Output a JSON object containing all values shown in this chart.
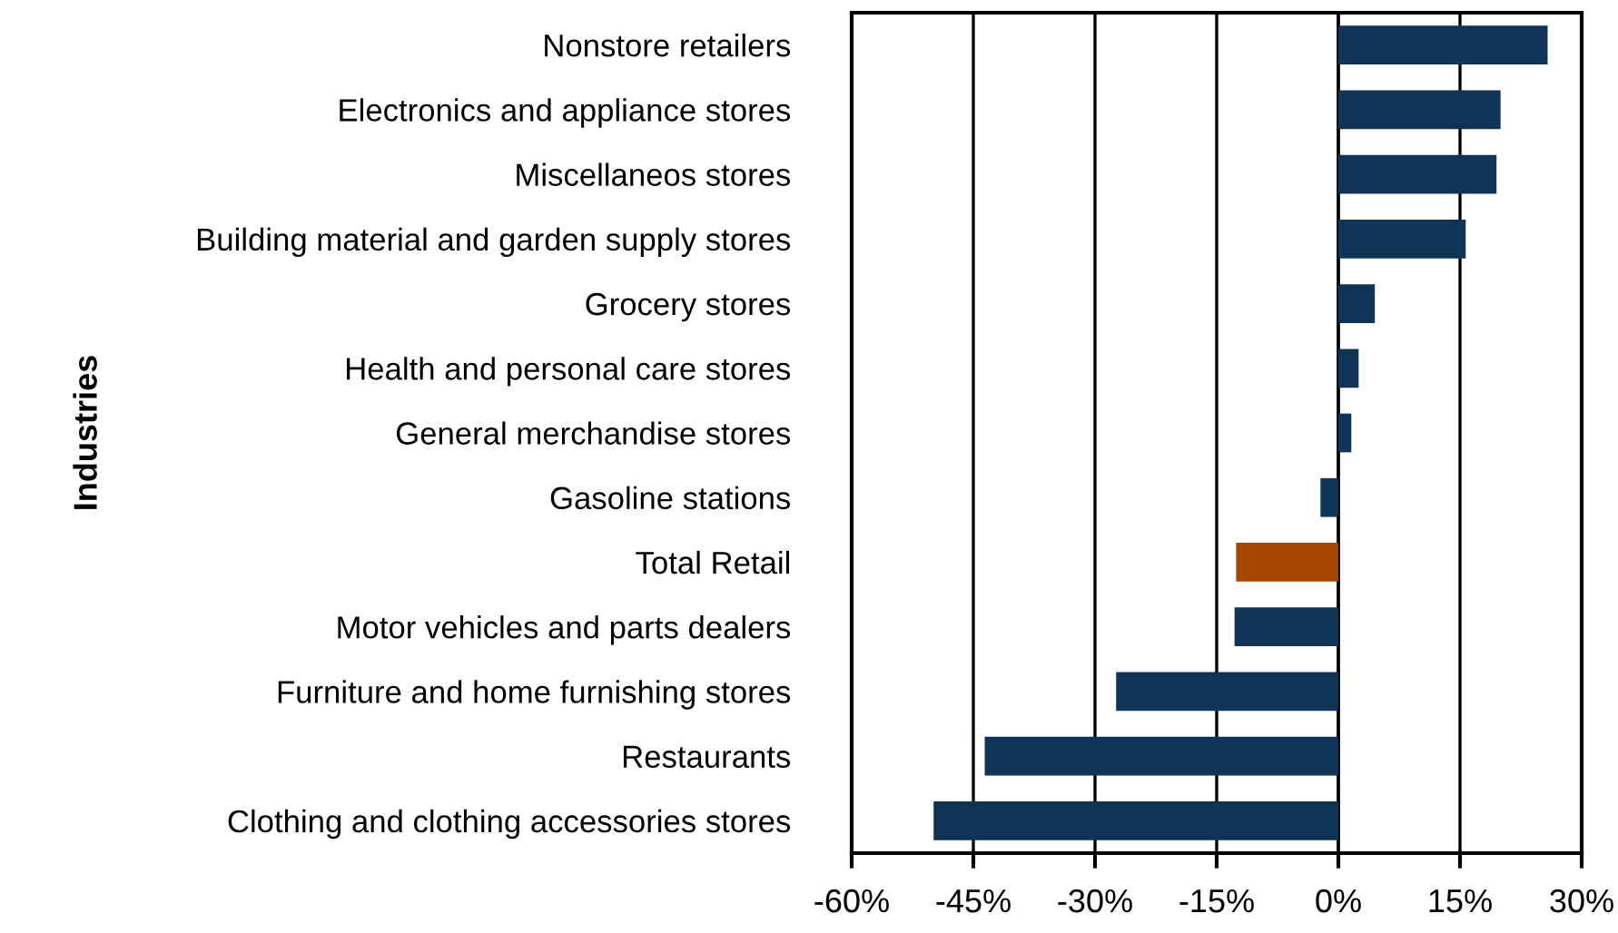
{
  "chart_data": {
    "type": "bar",
    "orientation": "horizontal",
    "ylabel": "Industries",
    "categories": [
      "Nonstore retailers",
      "Electronics and appliance stores",
      "Miscellaneos stores",
      "Building material and garden supply stores",
      "Grocery stores",
      "Health and personal care stores",
      "General merchandise stores",
      "Gasoline stations",
      "Total Retail",
      "Motor vehicles and parts dealers",
      "Furniture and home furnishing stores",
      "Restaurants",
      "Clothing and clothing accessories stores"
    ],
    "values": [
      25.8,
      20,
      19.5,
      15.7,
      4.5,
      2.5,
      1.6,
      -2.2,
      -12.6,
      -12.8,
      -27.4,
      -43.6,
      -49.9
    ],
    "colors": [
      "#103456",
      "#103456",
      "#103456",
      "#103456",
      "#103456",
      "#103456",
      "#103456",
      "#103456",
      "#a34700",
      "#103456",
      "#103456",
      "#103456",
      "#103456"
    ],
    "xlim": [
      -60,
      30
    ],
    "xticks": [
      {
        "value": -60,
        "label": "-60%"
      },
      {
        "value": -45,
        "label": "-45%"
      },
      {
        "value": -30,
        "label": "-30%"
      },
      {
        "value": -15,
        "label": "-15%"
      },
      {
        "value": 0,
        "label": "0%"
      },
      {
        "value": 15,
        "label": "15%"
      },
      {
        "value": 30,
        "label": "30%"
      }
    ],
    "grid": "x",
    "legend": false
  }
}
